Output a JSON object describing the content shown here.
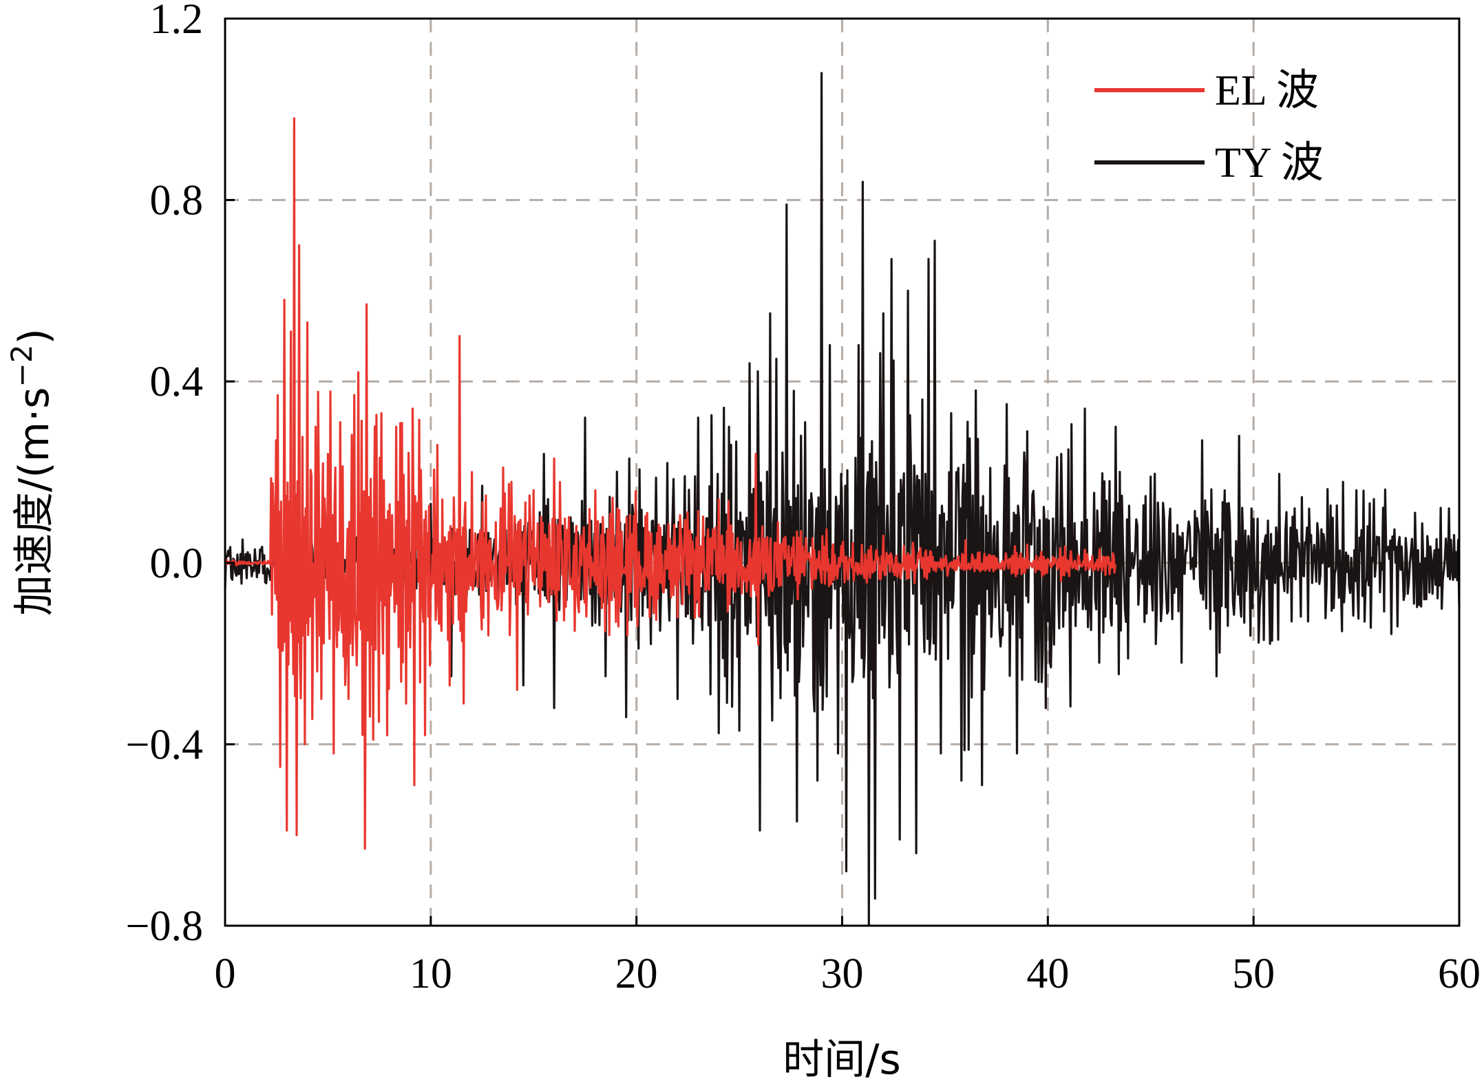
{
  "chart_data": {
    "type": "line",
    "title": "",
    "xlabel": "时间/s",
    "ylabel_main": "加速度/(m·s",
    "ylabel_sup": "−2",
    "ylabel_close": ")",
    "xlim": [
      0,
      60
    ],
    "ylim": [
      -0.8,
      1.2
    ],
    "x_ticks": [
      0,
      10,
      20,
      30,
      40,
      50,
      60
    ],
    "x_tick_labels": [
      "0",
      "10",
      "20",
      "30",
      "40",
      "50",
      "60"
    ],
    "y_ticks": [
      -0.8,
      -0.4,
      0.0,
      0.4,
      0.8,
      1.2
    ],
    "y_tick_labels": [
      "−0.8",
      "−0.4",
      "0.0",
      "0.4",
      "0.8",
      "1.2"
    ],
    "grid": true,
    "grid_style": "dashed",
    "legend_position": "top-right",
    "series": [
      {
        "name": "TY 波",
        "color": "#1a1414",
        "sample_step": 0.05,
        "duration": [
          0,
          60
        ],
        "peaks": [
          {
            "x": 10.0,
            "y": 0.13
          },
          {
            "x": 11.0,
            "y": -0.25
          },
          {
            "x": 12.5,
            "y": 0.17
          },
          {
            "x": 14.5,
            "y": -0.27
          },
          {
            "x": 15.5,
            "y": 0.24
          },
          {
            "x": 16.0,
            "y": -0.32
          },
          {
            "x": 17.5,
            "y": 0.32
          },
          {
            "x": 18.5,
            "y": -0.25
          },
          {
            "x": 19.5,
            "y": -0.34
          },
          {
            "x": 21.5,
            "y": 0.22
          },
          {
            "x": 22.0,
            "y": -0.3
          },
          {
            "x": 23.0,
            "y": 0.32
          },
          {
            "x": 24.5,
            "y": 0.3
          },
          {
            "x": 25.0,
            "y": -0.37
          },
          {
            "x": 25.5,
            "y": 0.44
          },
          {
            "x": 26.0,
            "y": -0.59
          },
          {
            "x": 26.5,
            "y": 0.55
          },
          {
            "x": 26.8,
            "y": 0.45
          },
          {
            "x": 27.3,
            "y": 0.79
          },
          {
            "x": 27.8,
            "y": -0.57
          },
          {
            "x": 28.2,
            "y": 0.31
          },
          {
            "x": 28.8,
            "y": -0.48
          },
          {
            "x": 29.0,
            "y": 1.08
          },
          {
            "x": 29.4,
            "y": 0.48
          },
          {
            "x": 29.8,
            "y": -0.42
          },
          {
            "x": 30.2,
            "y": -0.68
          },
          {
            "x": 30.8,
            "y": 0.48
          },
          {
            "x": 31.0,
            "y": 0.84
          },
          {
            "x": 31.3,
            "y": -0.8
          },
          {
            "x": 31.6,
            "y": -0.74
          },
          {
            "x": 32.0,
            "y": 0.55
          },
          {
            "x": 32.4,
            "y": 0.67
          },
          {
            "x": 32.8,
            "y": -0.61
          },
          {
            "x": 33.2,
            "y": 0.6
          },
          {
            "x": 33.6,
            "y": -0.64
          },
          {
            "x": 33.9,
            "y": 0.36
          },
          {
            "x": 34.2,
            "y": 0.67
          },
          {
            "x": 34.5,
            "y": 0.71
          },
          {
            "x": 34.8,
            "y": -0.42
          },
          {
            "x": 35.3,
            "y": 0.33
          },
          {
            "x": 35.8,
            "y": -0.48
          },
          {
            "x": 36.5,
            "y": 0.38
          },
          {
            "x": 36.8,
            "y": -0.49
          },
          {
            "x": 38.0,
            "y": 0.35
          },
          {
            "x": 38.5,
            "y": -0.42
          },
          {
            "x": 39.0,
            "y": 0.29
          },
          {
            "x": 39.9,
            "y": -0.32
          },
          {
            "x": 41.0,
            "y": 0.25
          },
          {
            "x": 41.8,
            "y": 0.34
          },
          {
            "x": 42.5,
            "y": -0.22
          },
          {
            "x": 43.3,
            "y": 0.3
          },
          {
            "x": 45.0,
            "y": 0.19
          },
          {
            "x": 46.5,
            "y": -0.22
          },
          {
            "x": 47.5,
            "y": 0.27
          },
          {
            "x": 48.2,
            "y": -0.25
          },
          {
            "x": 49.3,
            "y": 0.28
          },
          {
            "x": 50.5,
            "y": -0.17
          },
          {
            "x": 52.0,
            "y": 0.12
          },
          {
            "x": 55.0,
            "y": 0.16
          },
          {
            "x": 57.0,
            "y": -0.14
          },
          {
            "x": 59.5,
            "y": 0.12
          }
        ]
      },
      {
        "name": "EL 波",
        "color": "#e8372f",
        "sample_step": 0.04,
        "duration": [
          0,
          43.3
        ],
        "peaks": [
          {
            "x": 2.5,
            "y": 0.27
          },
          {
            "x": 2.7,
            "y": -0.45
          },
          {
            "x": 2.9,
            "y": 0.58
          },
          {
            "x": 3.0,
            "y": -0.59
          },
          {
            "x": 3.2,
            "y": 0.51
          },
          {
            "x": 3.35,
            "y": 0.98
          },
          {
            "x": 3.5,
            "y": -0.6
          },
          {
            "x": 3.6,
            "y": 0.7
          },
          {
            "x": 3.9,
            "y": -0.4
          },
          {
            "x": 4.0,
            "y": 0.53
          },
          {
            "x": 4.4,
            "y": 0.3
          },
          {
            "x": 4.7,
            "y": -0.3
          },
          {
            "x": 5.0,
            "y": 0.24
          },
          {
            "x": 5.3,
            "y": -0.42
          },
          {
            "x": 5.6,
            "y": 0.31
          },
          {
            "x": 6.0,
            "y": -0.3
          },
          {
            "x": 6.3,
            "y": 0.37
          },
          {
            "x": 6.5,
            "y": 0.42
          },
          {
            "x": 6.8,
            "y": -0.63
          },
          {
            "x": 6.9,
            "y": 0.57
          },
          {
            "x": 7.2,
            "y": -0.39
          },
          {
            "x": 7.6,
            "y": 0.33
          },
          {
            "x": 7.9,
            "y": -0.38
          },
          {
            "x": 8.3,
            "y": 0.3
          },
          {
            "x": 8.8,
            "y": -0.31
          },
          {
            "x": 9.1,
            "y": 0.34
          },
          {
            "x": 9.2,
            "y": -0.49
          },
          {
            "x": 9.7,
            "y": -0.38
          },
          {
            "x": 10.3,
            "y": 0.26
          },
          {
            "x": 10.9,
            "y": -0.27
          },
          {
            "x": 11.4,
            "y": 0.5
          },
          {
            "x": 11.6,
            "y": -0.31
          },
          {
            "x": 12.0,
            "y": 0.2
          },
          {
            "x": 12.8,
            "y": -0.16
          },
          {
            "x": 13.5,
            "y": 0.21
          },
          {
            "x": 14.2,
            "y": -0.28
          },
          {
            "x": 15.0,
            "y": 0.16
          },
          {
            "x": 16.0,
            "y": 0.23
          },
          {
            "x": 17.0,
            "y": -0.15
          },
          {
            "x": 18.0,
            "y": 0.16
          },
          {
            "x": 19.0,
            "y": -0.13
          },
          {
            "x": 20.5,
            "y": 0.11
          },
          {
            "x": 22.0,
            "y": -0.12
          },
          {
            "x": 24.0,
            "y": 0.14
          },
          {
            "x": 25.8,
            "y": 0.24
          },
          {
            "x": 25.9,
            "y": -0.18
          },
          {
            "x": 28.0,
            "y": 0.07
          },
          {
            "x": 32.0,
            "y": 0.06
          },
          {
            "x": 36.0,
            "y": 0.05
          },
          {
            "x": 39.0,
            "y": 0.04
          },
          {
            "x": 42.5,
            "y": 0.03
          }
        ]
      }
    ]
  }
}
